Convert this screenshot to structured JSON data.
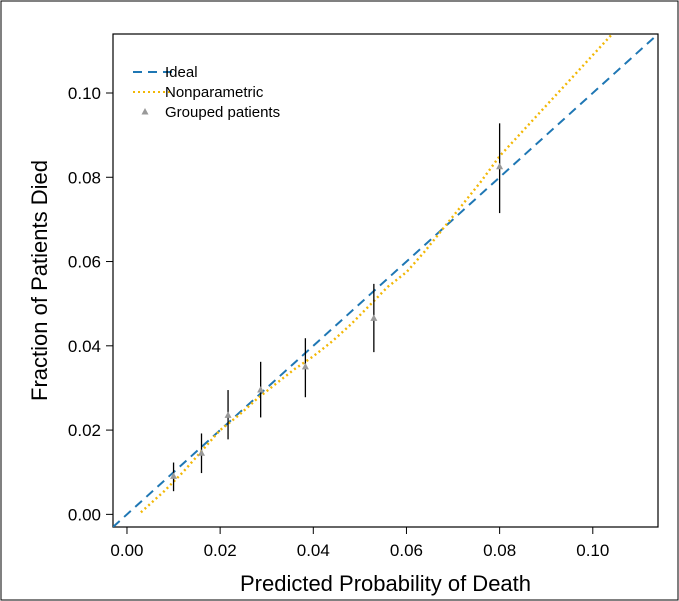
{
  "chart_data": {
    "type": "scatter",
    "title": "",
    "xlabel": "Predicted Probability of Death",
    "ylabel": "Fraction of Patients Died",
    "xlim": [
      -0.003,
      0.114
    ],
    "ylim": [
      -0.003,
      0.114
    ],
    "x_ticks": [
      0.0,
      0.02,
      0.04,
      0.06,
      0.08,
      0.1
    ],
    "x_tick_labels": [
      "0.00",
      "0.02",
      "0.04",
      "0.06",
      "0.08",
      "0.10"
    ],
    "y_ticks": [
      0.0,
      0.02,
      0.04,
      0.06,
      0.08,
      0.1
    ],
    "y_tick_labels": [
      "0.00",
      "0.02",
      "0.04",
      "0.06",
      "0.08",
      "0.10"
    ],
    "grid": false,
    "legend_position": "top-left",
    "series": [
      {
        "name": "Ideal",
        "kind": "line",
        "style": "dashed",
        "color": "#1f77b4",
        "x": [
          -0.003,
          0.114
        ],
        "y": [
          -0.003,
          0.114
        ]
      },
      {
        "name": "Nonparametric",
        "kind": "line",
        "style": "dotted",
        "color": "#f2b705",
        "x": [
          0.003,
          0.008,
          0.012,
          0.016,
          0.02,
          0.024,
          0.028,
          0.032,
          0.036,
          0.04,
          0.044,
          0.048,
          0.052,
          0.056,
          0.06,
          0.064,
          0.068,
          0.072,
          0.076,
          0.08,
          0.085,
          0.09,
          0.095,
          0.1,
          0.105
        ],
        "y": [
          0.0005,
          0.0055,
          0.01,
          0.015,
          0.02,
          0.0235,
          0.0275,
          0.031,
          0.0345,
          0.0375,
          0.041,
          0.045,
          0.0495,
          0.054,
          0.0575,
          0.0625,
          0.068,
          0.0735,
          0.079,
          0.085,
          0.091,
          0.097,
          0.103,
          0.109,
          0.115
        ]
      },
      {
        "name": "Grouped patients",
        "kind": "points",
        "marker": "triangle",
        "color": "#999999",
        "x": [
          0.01,
          0.016,
          0.0217,
          0.0287,
          0.0383,
          0.053,
          0.08
        ],
        "y": [
          0.009,
          0.0145,
          0.0235,
          0.0295,
          0.035,
          0.0465,
          0.0825
        ],
        "y_lower": [
          0.0055,
          0.0098,
          0.0178,
          0.023,
          0.0278,
          0.0385,
          0.0715
        ],
        "y_upper": [
          0.0123,
          0.0192,
          0.0295,
          0.0362,
          0.0418,
          0.0547,
          0.0928
        ]
      }
    ]
  }
}
